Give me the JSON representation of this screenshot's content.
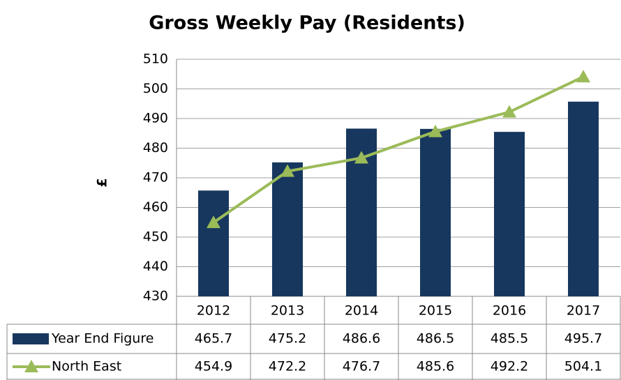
{
  "chart_data": {
    "type": "bar-line",
    "title": "Gross Weekly Pay (Residents)",
    "y_label": "£",
    "categories": [
      "2012",
      "2013",
      "2014",
      "2015",
      "2016",
      "2017"
    ],
    "series": [
      {
        "name": "Year End Figure",
        "type": "bar",
        "color": "#17375e",
        "values": [
          465.7,
          475.2,
          486.6,
          486.5,
          485.5,
          495.7
        ]
      },
      {
        "name": "North East",
        "type": "line",
        "color": "#9bbb59",
        "values": [
          454.9,
          472.2,
          476.7,
          485.6,
          492.2,
          504.1
        ]
      }
    ],
    "ylim": [
      430,
      510
    ],
    "yticks": [
      430,
      440,
      450,
      460,
      470,
      480,
      490,
      500,
      510
    ],
    "grid": true,
    "data_table": true
  }
}
